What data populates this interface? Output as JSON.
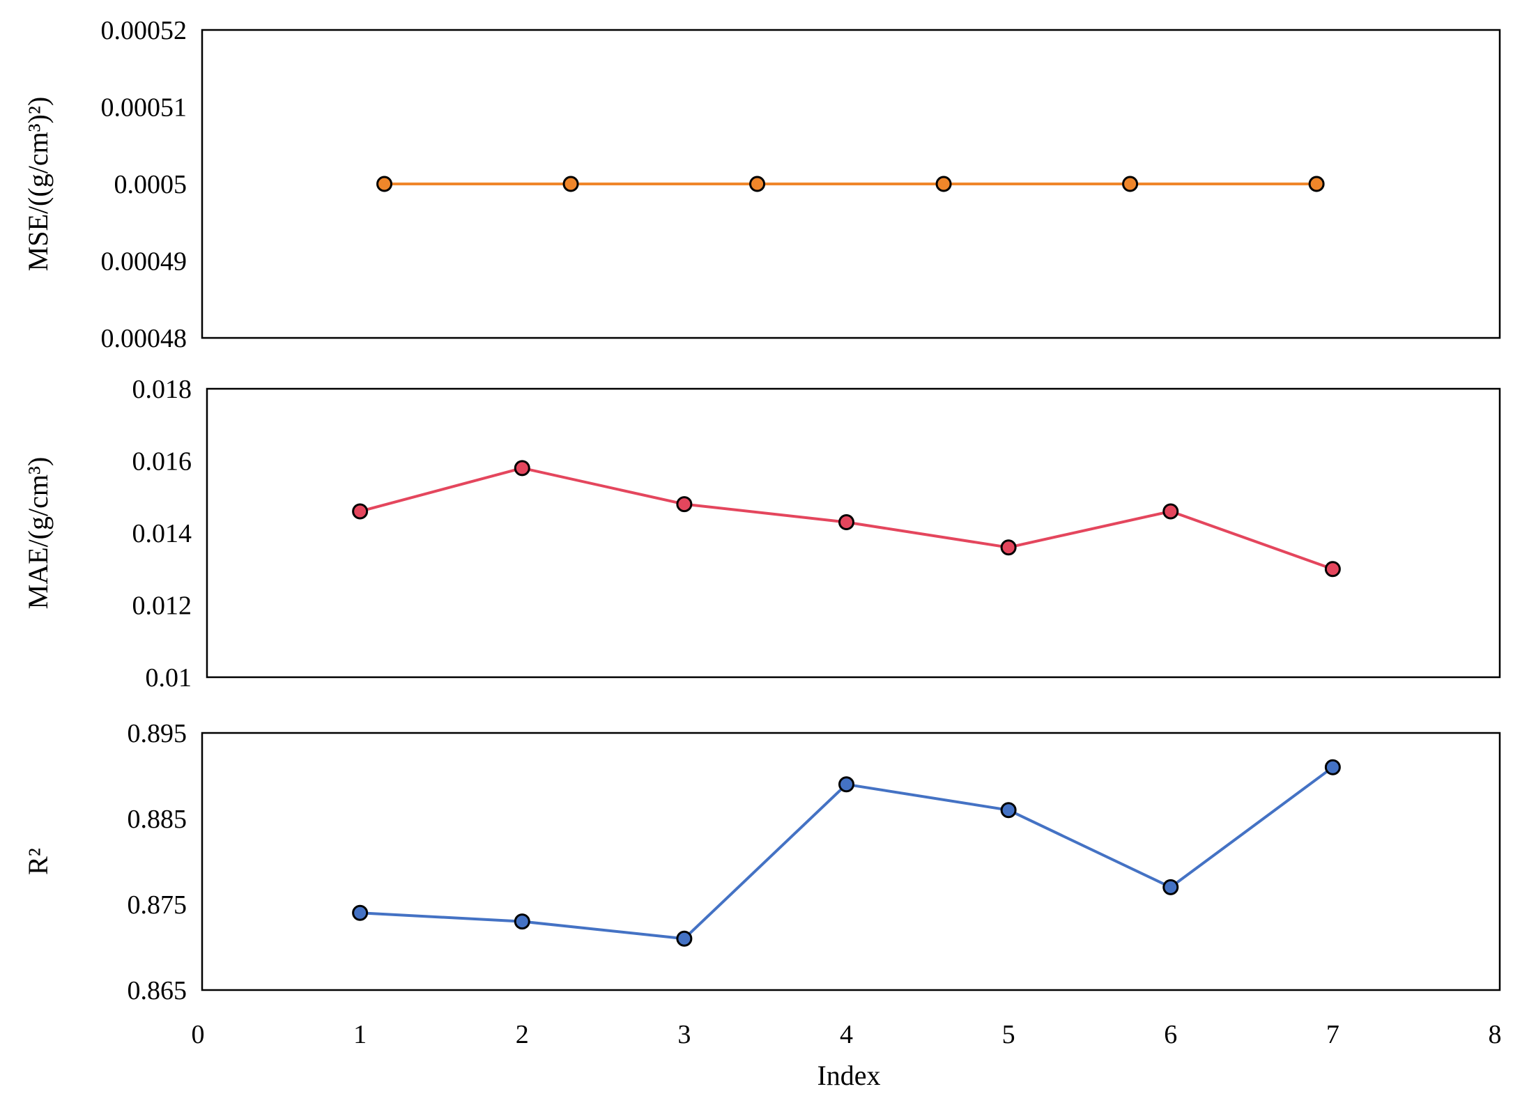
{
  "chart_data": [
    {
      "type": "line",
      "ylabel": "MSE/((g/cm³)²)",
      "ylim": [
        0.00048,
        0.00052
      ],
      "yticks": [
        "0.00052",
        "0.00051",
        "0.0005",
        "0.00049",
        "0.00048"
      ],
      "ytick_values": [
        0.00052,
        0.00051,
        0.0005,
        0.00049,
        0.00048
      ],
      "color": "#f0862a",
      "series": [
        {
          "x": [
            1.15,
            2.3,
            3.45,
            4.6,
            5.75,
            6.9
          ],
          "y": [
            0.0005,
            0.0005,
            0.0005,
            0.0005,
            0.0005,
            0.0005
          ]
        }
      ]
    },
    {
      "type": "line",
      "ylabel": "MAE/(g/cm³)",
      "ylim": [
        0.01,
        0.018
      ],
      "yticks": [
        "0.018",
        "0.016",
        "0.014",
        "0.012",
        "0.01"
      ],
      "ytick_values": [
        0.018,
        0.016,
        0.014,
        0.012,
        0.01
      ],
      "color": "#e4465d",
      "series": [
        {
          "x": [
            1,
            2,
            3,
            4,
            5,
            6,
            7
          ],
          "y": [
            0.0146,
            0.0158,
            0.0148,
            0.0143,
            0.0136,
            0.0146,
            0.013
          ]
        }
      ]
    },
    {
      "type": "line",
      "ylabel": "R²",
      "xlabel": "Index",
      "ylim": [
        0.865,
        0.895
      ],
      "xlim": [
        0,
        8
      ],
      "yticks": [
        "0.895",
        "0.885",
        "0.875",
        "0.865"
      ],
      "ytick_values": [
        0.895,
        0.885,
        0.875,
        0.865
      ],
      "xticks": [
        "0",
        "1",
        "2",
        "3",
        "4",
        "5",
        "6",
        "7",
        "8"
      ],
      "color": "#4472c4",
      "series": [
        {
          "x": [
            1,
            2,
            3,
            4,
            5,
            6,
            7
          ],
          "y": [
            0.874,
            0.873,
            0.871,
            0.889,
            0.886,
            0.877,
            0.891
          ]
        }
      ]
    }
  ]
}
